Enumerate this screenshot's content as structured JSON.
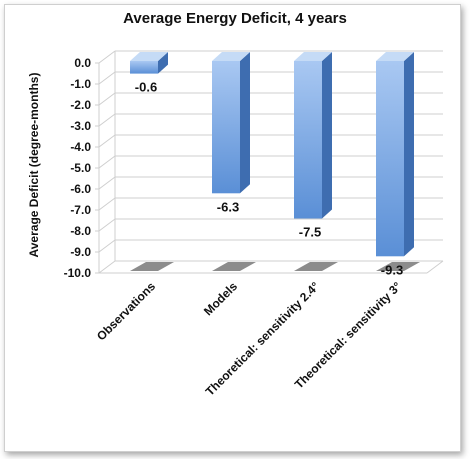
{
  "chart_data": {
    "type": "bar",
    "title": "Average Energy Deficit, 4 years",
    "xlabel": "",
    "ylabel": "Average Deficit (degree-months)",
    "categories": [
      "Observations",
      "Models",
      "Theoretical: sensitivity 2.4°",
      "Theoretical: sensitivity 3°"
    ],
    "values": [
      -0.6,
      -6.3,
      -7.5,
      -9.3
    ],
    "data_labels": [
      "-0.6",
      "-6.3",
      "-7.5",
      "-9.3"
    ],
    "ylim": [
      -10,
      0
    ],
    "yticks": [
      "0.0",
      "-1.0",
      "-2.0",
      "-3.0",
      "-4.0",
      "-5.0",
      "-6.0",
      "-7.0",
      "-8.0",
      "-9.0",
      "-10.0"
    ],
    "grid": true,
    "legend": "none",
    "colors": {
      "bar_front_top": "#a9c8f2",
      "bar_front_bottom": "#5a8fd6",
      "bar_side": "#3e6db0",
      "bar_top": "#c5dbf6",
      "grid": "#cfcfcf",
      "floor_shadow": "#8c8c8c"
    }
  }
}
